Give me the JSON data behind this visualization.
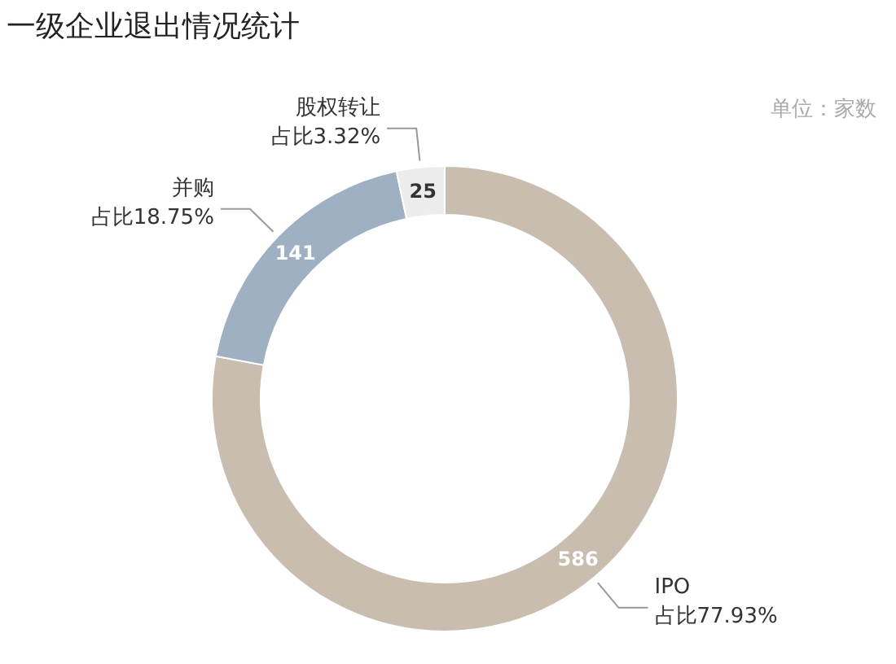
{
  "chart_data": {
    "type": "donut",
    "title": "一级企业退出情况统计",
    "categories": [
      "IPO",
      "并购",
      "股权转让"
    ],
    "values": [
      586,
      141,
      25
    ],
    "colors": [
      "#c9bdb0",
      "#9fb0c3",
      "#ececec"
    ],
    "data_labels": true,
    "legend": false,
    "annotations": [
      "单位：家数",
      {
        "text": "占比77.93%",
        "x": "IPO"
      },
      {
        "text": "占比18.75%",
        "x": "并购"
      },
      {
        "text": "占比3.32%",
        "x": "股权转让"
      }
    ]
  }
}
